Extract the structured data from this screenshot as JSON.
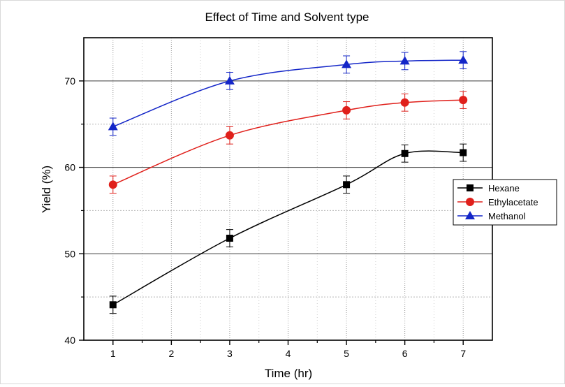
{
  "chart_data": {
    "type": "line",
    "title": "Effect of Time and Solvent type",
    "xlabel": "Time (hr)",
    "ylabel": "Yield (%)",
    "x": [
      1,
      3,
      5,
      6,
      7
    ],
    "xlim": [
      0.5,
      7.5
    ],
    "ylim": [
      40,
      75
    ],
    "xticks": [
      "1",
      "2",
      "3",
      "4",
      "5",
      "6",
      "7"
    ],
    "yticks": [
      "40",
      "50",
      "60",
      "70"
    ],
    "grid": true,
    "legend_position": "right",
    "series": [
      {
        "name": "Hexane",
        "marker": "square",
        "color": "#000000",
        "values": [
          44.1,
          51.8,
          58.0,
          61.6,
          61.7
        ],
        "error": [
          1.0,
          1.0,
          1.0,
          1.0,
          1.0
        ]
      },
      {
        "name": "Ethylacetate",
        "marker": "circle",
        "color": "#e0201b",
        "values": [
          58.0,
          63.7,
          66.6,
          67.5,
          67.8
        ],
        "error": [
          1.0,
          1.0,
          1.0,
          1.0,
          1.0
        ]
      },
      {
        "name": "Methanol",
        "marker": "triangle",
        "color": "#1426c8",
        "values": [
          64.7,
          70.0,
          71.9,
          72.3,
          72.4
        ],
        "error": [
          1.0,
          1.0,
          1.0,
          1.0,
          1.0
        ]
      }
    ]
  }
}
